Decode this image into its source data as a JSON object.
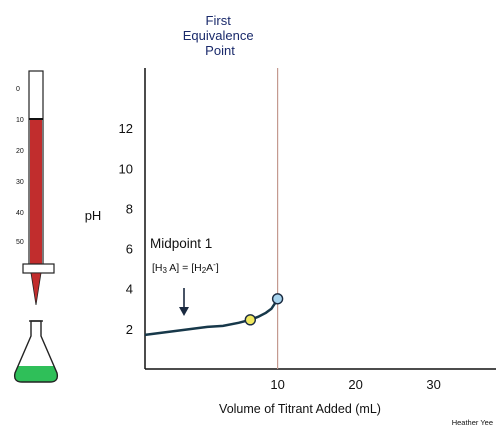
{
  "chart_data": {
    "type": "line",
    "title": "",
    "xlabel": "Volume of Titrant Added (mL)",
    "ylabel": "pH",
    "xlim": [
      -7,
      38
    ],
    "ylim": [
      0,
      15
    ],
    "x_ticks": [
      10,
      20,
      30
    ],
    "y_ticks": [
      2,
      4,
      6,
      8,
      10,
      12
    ],
    "grid": false,
    "series": [
      {
        "x": [
          -7,
          -5,
          -3,
          -1,
          1,
          3,
          5,
          6.5,
          7.5,
          8.5,
          9.2,
          9.7,
          10
        ],
        "y": [
          1.7,
          1.8,
          1.9,
          2.0,
          2.1,
          2.15,
          2.3,
          2.45,
          2.6,
          2.8,
          3.0,
          3.3,
          3.5
        ]
      }
    ],
    "equivalence_line": {
      "x": 10,
      "label_lines": [
        "First",
        "Equivalence",
        "Point"
      ]
    },
    "points": [
      {
        "name": "midpoint",
        "x": 6.5,
        "y": 2.45,
        "color": "#f0e860"
      },
      {
        "name": "equivalence",
        "x": 10,
        "y": 3.5,
        "color": "#a8d4ee"
      }
    ],
    "annotation": {
      "title": "Midpoint 1",
      "left_main": "[H",
      "left_sub": "3",
      "left_tail": " A]",
      "equals": " = ",
      "right_main": "[H",
      "right_sub": "2",
      "right_tail": "A",
      "right_sup": "-",
      "right_close": "]"
    },
    "credit": "Heather Yee"
  },
  "burette": {
    "ticks": [
      "0",
      "10",
      "20",
      "30",
      "40",
      "50"
    ],
    "liquid_color": "#c12d2d",
    "flask_liquid_color": "#2fbf59"
  }
}
